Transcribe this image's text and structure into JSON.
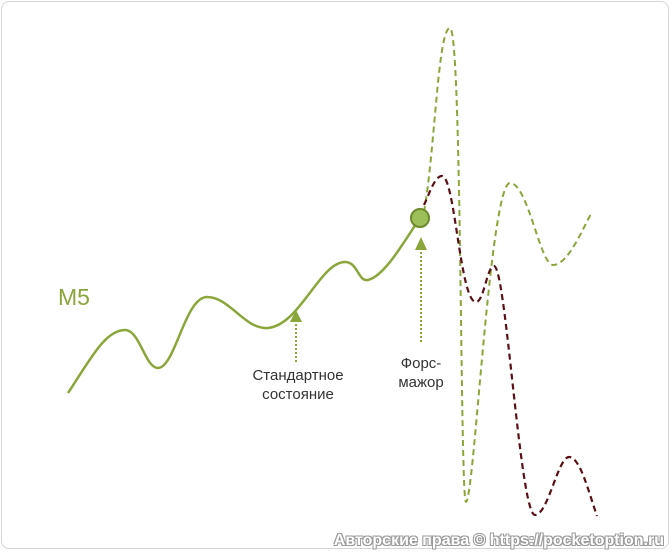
{
  "diagram": {
    "series_label": "M5",
    "label_normal": [
      "Стандартное",
      "состояние"
    ],
    "label_force": [
      "Форс-",
      "мажор"
    ],
    "watermark": "Авторские права © https://pocketoption.ru",
    "colors": {
      "green": "#8aa63a",
      "dark_red": "#5a1016",
      "marker_fill": "#9cbf5a"
    }
  }
}
